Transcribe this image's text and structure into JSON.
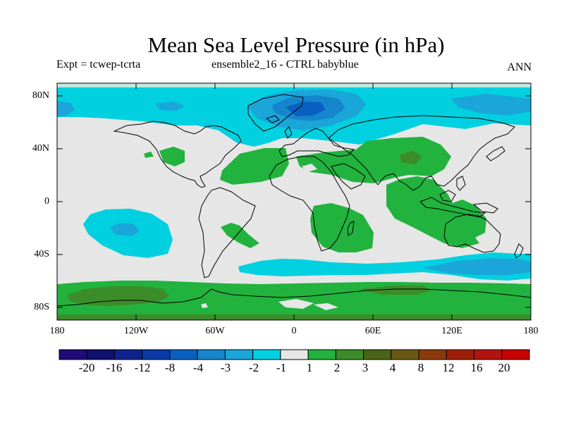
{
  "chart_data": {
    "type": "filled-contour-map",
    "title": "Mean Sea Level Pressure (in hPa)",
    "left_label": "Expt = tcwep-tcrta",
    "center_label": "ensemble2_16 - CTRL babyblue",
    "right_label": "ANN",
    "lat_ticks": [
      "80N",
      "40N",
      "0",
      "40S",
      "80S"
    ],
    "lon_ticks": [
      "180",
      "120W",
      "60W",
      "0",
      "60E",
      "120E",
      "180"
    ],
    "colorbar": {
      "levels": [
        "-20",
        "-16",
        "-12",
        "-8",
        "-4",
        "-3",
        "-2",
        "-1",
        "1",
        "2",
        "3",
        "4",
        "8",
        "12",
        "16",
        "20"
      ],
      "colors": [
        "#200c78",
        "#10106e",
        "#0c248c",
        "#0a3aa6",
        "#0a60c0",
        "#1686cc",
        "#1aa6d8",
        "#00d0e0",
        "#e6e6e6",
        "#22b23e",
        "#3c8c2a",
        "#4a6418",
        "#6a5812",
        "#8a3a0a",
        "#a01e08",
        "#b41410",
        "#c80000"
      ]
    }
  }
}
